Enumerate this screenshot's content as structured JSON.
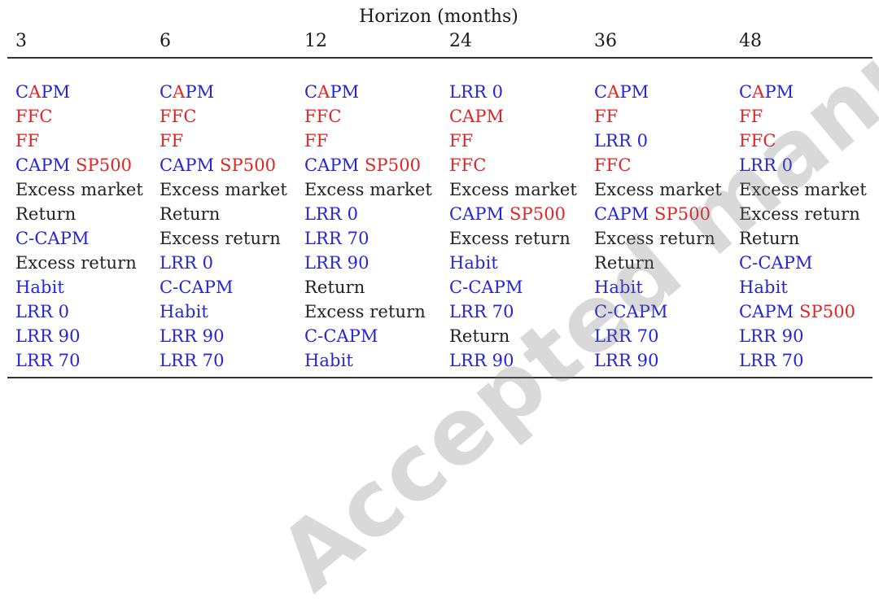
{
  "table": {
    "super_header": "Horizon (months)",
    "colors": {
      "blue": "#2424d8",
      "red": "#e02424",
      "black": "#222222"
    },
    "columns": [
      {
        "header": "3",
        "cells": [
          [
            {
              "t": "C",
              "c": "blue"
            },
            {
              "t": "A",
              "c": "red"
            },
            {
              "t": "PM",
              "c": "blue"
            }
          ],
          [
            {
              "t": "FFC",
              "c": "red"
            }
          ],
          [
            {
              "t": "FF",
              "c": "red"
            }
          ],
          [
            {
              "t": "CAPM ",
              "c": "blue"
            },
            {
              "t": "SP500",
              "c": "red"
            }
          ],
          [
            {
              "t": "Excess market",
              "c": "black"
            }
          ],
          [
            {
              "t": "Return",
              "c": "black"
            }
          ],
          [
            {
              "t": "C-CAPM",
              "c": "blue"
            }
          ],
          [
            {
              "t": "Excess return",
              "c": "black"
            }
          ],
          [
            {
              "t": "Habit",
              "c": "blue"
            }
          ],
          [
            {
              "t": "LRR 0",
              "c": "blue"
            }
          ],
          [
            {
              "t": "LRR 90",
              "c": "blue"
            }
          ],
          [
            {
              "t": "LRR 70",
              "c": "blue"
            }
          ]
        ]
      },
      {
        "header": "6",
        "cells": [
          [
            {
              "t": "C",
              "c": "blue"
            },
            {
              "t": "A",
              "c": "red"
            },
            {
              "t": "PM",
              "c": "blue"
            }
          ],
          [
            {
              "t": "FFC",
              "c": "red"
            }
          ],
          [
            {
              "t": "FF",
              "c": "red"
            }
          ],
          [
            {
              "t": "CAPM ",
              "c": "blue"
            },
            {
              "t": "SP500",
              "c": "red"
            }
          ],
          [
            {
              "t": "Excess market",
              "c": "black"
            }
          ],
          [
            {
              "t": "Return",
              "c": "black"
            }
          ],
          [
            {
              "t": "Excess return",
              "c": "black"
            }
          ],
          [
            {
              "t": "LRR 0",
              "c": "blue"
            }
          ],
          [
            {
              "t": "C-CAPM",
              "c": "blue"
            }
          ],
          [
            {
              "t": "Habit",
              "c": "blue"
            }
          ],
          [
            {
              "t": "LRR 90",
              "c": "blue"
            }
          ],
          [
            {
              "t": "LRR 70",
              "c": "blue"
            }
          ]
        ]
      },
      {
        "header": "12",
        "cells": [
          [
            {
              "t": "C",
              "c": "blue"
            },
            {
              "t": "A",
              "c": "red"
            },
            {
              "t": "PM",
              "c": "blue"
            }
          ],
          [
            {
              "t": "FFC",
              "c": "red"
            }
          ],
          [
            {
              "t": "FF",
              "c": "red"
            }
          ],
          [
            {
              "t": "CAPM ",
              "c": "blue"
            },
            {
              "t": "SP500",
              "c": "red"
            }
          ],
          [
            {
              "t": "Excess market",
              "c": "black"
            }
          ],
          [
            {
              "t": "LRR 0",
              "c": "blue"
            }
          ],
          [
            {
              "t": "LRR 70",
              "c": "blue"
            }
          ],
          [
            {
              "t": "LRR 90",
              "c": "blue"
            }
          ],
          [
            {
              "t": "Return",
              "c": "black"
            }
          ],
          [
            {
              "t": "Excess return",
              "c": "black"
            }
          ],
          [
            {
              "t": "C-CAPM",
              "c": "blue"
            }
          ],
          [
            {
              "t": "Habit",
              "c": "blue"
            }
          ]
        ]
      },
      {
        "header": "24",
        "cells": [
          [
            {
              "t": "LRR 0",
              "c": "blue"
            }
          ],
          [
            {
              "t": "CAPM",
              "c": "red"
            }
          ],
          [
            {
              "t": "FF",
              "c": "red"
            }
          ],
          [
            {
              "t": "FFC",
              "c": "red"
            }
          ],
          [
            {
              "t": "Excess market",
              "c": "black"
            }
          ],
          [
            {
              "t": "CAPM ",
              "c": "blue"
            },
            {
              "t": "SP500",
              "c": "red"
            }
          ],
          [
            {
              "t": "Excess return",
              "c": "black"
            }
          ],
          [
            {
              "t": "Habit",
              "c": "blue"
            }
          ],
          [
            {
              "t": "C-CAPM",
              "c": "blue"
            }
          ],
          [
            {
              "t": "LRR 70",
              "c": "blue"
            }
          ],
          [
            {
              "t": "Return",
              "c": "black"
            }
          ],
          [
            {
              "t": "LRR 90",
              "c": "blue"
            }
          ]
        ]
      },
      {
        "header": "36",
        "cells": [
          [
            {
              "t": "C",
              "c": "blue"
            },
            {
              "t": "A",
              "c": "red"
            },
            {
              "t": "PM",
              "c": "blue"
            }
          ],
          [
            {
              "t": "FF",
              "c": "red"
            }
          ],
          [
            {
              "t": "LRR 0",
              "c": "blue"
            }
          ],
          [
            {
              "t": "FFC",
              "c": "red"
            }
          ],
          [
            {
              "t": "Excess market",
              "c": "black"
            }
          ],
          [
            {
              "t": "CAPM ",
              "c": "blue"
            },
            {
              "t": "SP500",
              "c": "red"
            }
          ],
          [
            {
              "t": "Excess return",
              "c": "black"
            }
          ],
          [
            {
              "t": "Return",
              "c": "black"
            }
          ],
          [
            {
              "t": "Habit",
              "c": "blue"
            }
          ],
          [
            {
              "t": "C-CAPM",
              "c": "blue"
            }
          ],
          [
            {
              "t": "LRR 70",
              "c": "blue"
            }
          ],
          [
            {
              "t": "LRR 90",
              "c": "blue"
            }
          ]
        ]
      },
      {
        "header": "48",
        "cells": [
          [
            {
              "t": "C",
              "c": "blue"
            },
            {
              "t": "A",
              "c": "red"
            },
            {
              "t": "PM",
              "c": "blue"
            }
          ],
          [
            {
              "t": "FF",
              "c": "red"
            }
          ],
          [
            {
              "t": "FFC",
              "c": "red"
            }
          ],
          [
            {
              "t": "LRR 0",
              "c": "blue"
            }
          ],
          [
            {
              "t": "Excess market",
              "c": "black"
            }
          ],
          [
            {
              "t": "Excess return",
              "c": "black"
            }
          ],
          [
            {
              "t": "Return",
              "c": "black"
            }
          ],
          [
            {
              "t": "C-CAPM",
              "c": "blue"
            }
          ],
          [
            {
              "t": "Habit",
              "c": "blue"
            }
          ],
          [
            {
              "t": "CAPM ",
              "c": "blue"
            },
            {
              "t": "SP500",
              "c": "red"
            }
          ],
          [
            {
              "t": "LRR 90",
              "c": "blue"
            }
          ],
          [
            {
              "t": "LRR 70",
              "c": "blue"
            }
          ]
        ]
      }
    ]
  },
  "watermark": "Accepted manuscript"
}
